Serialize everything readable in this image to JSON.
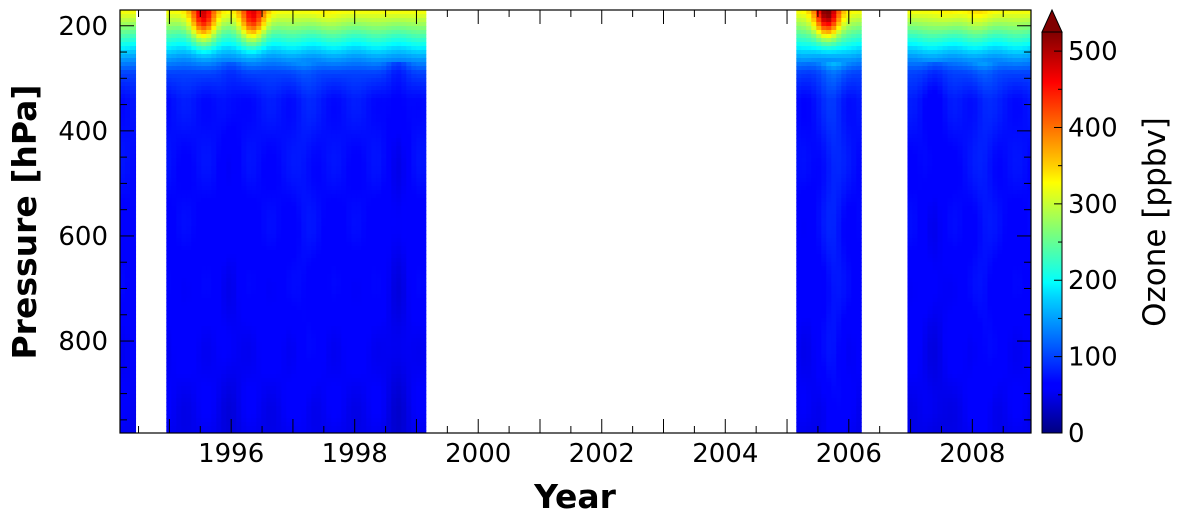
{
  "chart_data": {
    "type": "heatmap",
    "title": "",
    "xlabel": "Year",
    "ylabel": "Pressure [hPa]",
    "xlim": [
      1994.2,
      2008.95
    ],
    "ylim": [
      975,
      170
    ],
    "y_inverted": true,
    "x_ticks": [
      1996,
      1998,
      2000,
      2002,
      2004,
      2006,
      2008
    ],
    "x_tick_labels": [
      "1996",
      "1998",
      "2000",
      "2002",
      "2004",
      "2006",
      "2008"
    ],
    "y_ticks": [
      200,
      400,
      600,
      800
    ],
    "y_tick_labels": [
      "200",
      "400",
      "600",
      "800"
    ],
    "colorbar": {
      "label": "Ozone [ppbv]",
      "range": [
        0,
        525
      ],
      "extend": "max",
      "colormap": "jet",
      "ticks": [
        0,
        100,
        200,
        300,
        400,
        500
      ],
      "tick_labels": [
        "0",
        "100",
        "200",
        "300",
        "400",
        "500"
      ]
    },
    "data_segments": [
      {
        "x_start": 1994.2,
        "x_end": 1994.45
      },
      {
        "x_start": 1994.95,
        "x_end": 1999.15
      },
      {
        "x_start": 2005.15,
        "x_end": 2006.2
      },
      {
        "x_start": 2006.95,
        "x_end": 2008.95
      }
    ],
    "pressure_profile": [
      {
        "pressure": 170,
        "ozone": 330
      },
      {
        "pressure": 200,
        "ozone": 270
      },
      {
        "pressure": 230,
        "ozone": 210
      },
      {
        "pressure": 260,
        "ozone": 150
      },
      {
        "pressure": 290,
        "ozone": 100
      },
      {
        "pressure": 340,
        "ozone": 75
      },
      {
        "pressure": 500,
        "ozone": 68
      },
      {
        "pressure": 700,
        "ozone": 62
      },
      {
        "pressure": 900,
        "ozone": 55
      },
      {
        "pressure": 975,
        "ozone": 50
      }
    ],
    "upper_maxima": [
      {
        "x": 1995.55,
        "pressure": 185,
        "ozone": 470
      },
      {
        "x": 1996.35,
        "pressure": 185,
        "ozone": 460
      },
      {
        "x": 1997.55,
        "pressure": 180,
        "ozone": 320
      },
      {
        "x": 2005.65,
        "pressure": 180,
        "ozone": 525
      },
      {
        "x": 2007.6,
        "pressure": 175,
        "ozone": 330
      },
      {
        "x": 2008.1,
        "pressure": 175,
        "ozone": 340
      }
    ],
    "low_ozone_columns": [
      {
        "x": 1996.0,
        "ozone_factor": 0.88
      },
      {
        "x": 1997.2,
        "ozone_factor": 1.1
      },
      {
        "x": 1998.7,
        "ozone_factor": 0.78
      },
      {
        "x": 2005.35,
        "ozone_factor": 0.95
      },
      {
        "x": 2005.75,
        "ozone_factor": 1.25
      },
      {
        "x": 2007.4,
        "ozone_factor": 0.85
      },
      {
        "x": 2008.2,
        "ozone_factor": 1.15
      }
    ]
  }
}
